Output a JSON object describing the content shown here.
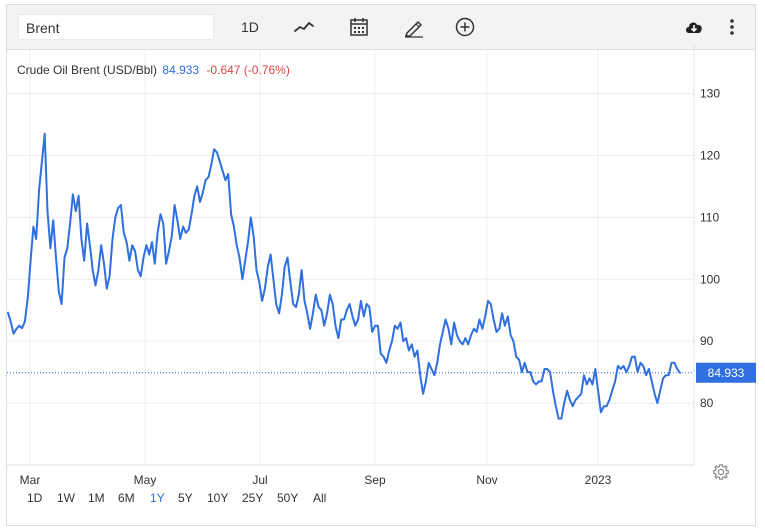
{
  "toolbar": {
    "symbol": "Brent",
    "interval": "1D",
    "icons": [
      "line-chart-icon",
      "calendar-icon",
      "pencil-icon",
      "add-circle-icon",
      "cloud-download-icon",
      "more-vert-icon"
    ]
  },
  "legend": {
    "name": "Crude Oil Brent (USD/Bbl)",
    "value": "84.933",
    "change": "-0.647 (-0.76%)"
  },
  "colors": {
    "line": "#2f6fe0",
    "change_negative": "#e04545",
    "grid": "#ececec",
    "accent": "#2f6fe0"
  },
  "ranges": {
    "items": [
      "1D",
      "1W",
      "1M",
      "6M",
      "1Y",
      "5Y",
      "10Y",
      "25Y",
      "50Y",
      "All"
    ],
    "active": "1Y"
  },
  "chart_data": {
    "type": "line",
    "title": "Crude Oil Brent (USD/Bbl)",
    "xlabel": "",
    "ylabel": "",
    "ylim": [
      70,
      138
    ],
    "y_ticks": [
      "130",
      "120",
      "110",
      "100",
      "90",
      "80"
    ],
    "x_ticks": [
      "Mar",
      "May",
      "Jul",
      "Sep",
      "Nov",
      "2023"
    ],
    "grid": true,
    "last_value_label": "84.933",
    "series": [
      {
        "values": [
          94.6,
          93.1,
          91.2,
          92.0,
          92.5,
          92.1,
          93.2,
          97.0,
          103.0,
          108.5,
          106.5,
          114.5,
          119.0,
          123.5,
          111.0,
          105.0,
          109.5,
          103.5,
          98.0,
          96.0,
          103.5,
          105.0,
          109.0,
          113.7,
          111.0,
          113.5,
          106.5,
          103.0,
          109.0,
          105.5,
          101.5,
          99.0,
          101.5,
          105.5,
          102.5,
          98.5,
          100.5,
          106.5,
          110.0,
          111.5,
          112.0,
          107.5,
          106.0,
          103.0,
          105.5,
          104.5,
          101.5,
          100.5,
          103.5,
          105.5,
          104.0,
          106.0,
          102.5,
          107.5,
          110.5,
          109.0,
          102.5,
          104.5,
          107.0,
          112.0,
          109.5,
          106.5,
          108.5,
          107.5,
          108.0,
          110.5,
          113.5,
          115.0,
          112.5,
          114.0,
          116.0,
          116.5,
          118.5,
          121.0,
          120.5,
          119.0,
          117.5,
          116.0,
          117.0,
          110.5,
          108.5,
          105.5,
          103.5,
          100.0,
          103.0,
          106.0,
          110.0,
          107.0,
          101.5,
          99.5,
          96.5,
          98.5,
          102.0,
          104.0,
          100.0,
          96.0,
          94.5,
          97.5,
          102.0,
          103.5,
          99.5,
          96.0,
          95.5,
          97.5,
          101.5,
          96.5,
          94.5,
          92.0,
          94.5,
          97.5,
          95.5,
          95.0,
          92.5,
          94.5,
          97.5,
          96.0,
          92.5,
          90.5,
          93.5,
          93.5,
          95.0,
          96.0,
          94.0,
          92.5,
          93.5,
          96.5,
          94.0,
          96.0,
          95.5,
          91.5,
          92.5,
          92.5,
          88.0,
          87.5,
          86.5,
          88.5,
          90.0,
          92.5,
          92.0,
          93.0,
          90.0,
          90.5,
          88.5,
          89.5,
          87.5,
          88.5,
          84.5,
          81.5,
          83.5,
          86.5,
          85.5,
          84.5,
          86.5,
          89.5,
          91.5,
          93.5,
          92.0,
          89.5,
          93.0,
          91.0,
          90.0,
          89.5,
          90.5,
          89.5,
          91.0,
          92.0,
          91.5,
          93.5,
          92.0,
          94.0,
          96.5,
          96.0,
          93.5,
          91.5,
          92.0,
          94.5,
          92.5,
          94.0,
          91.0,
          90.0,
          87.5,
          87.0,
          85.0,
          86.5,
          85.0,
          85.0,
          83.5,
          83.0,
          83.5,
          83.5,
          85.5,
          85.5,
          85.0,
          82.0,
          79.5,
          77.5,
          77.5,
          80.0,
          82.0,
          80.5,
          79.5,
          80.5,
          81.0,
          81.5,
          84.5,
          83.0,
          84.0,
          83.0,
          85.5,
          82.0,
          78.5,
          79.5,
          79.5,
          80.5,
          82.0,
          83.5,
          86.0,
          85.5,
          86.0,
          85.0,
          86.0,
          87.5,
          87.5,
          85.0,
          86.5,
          86.0,
          84.5,
          85.5,
          83.5,
          81.5,
          80.0,
          82.0,
          84.0,
          84.5,
          84.5,
          86.5,
          86.5,
          85.5,
          84.9
        ]
      }
    ]
  }
}
